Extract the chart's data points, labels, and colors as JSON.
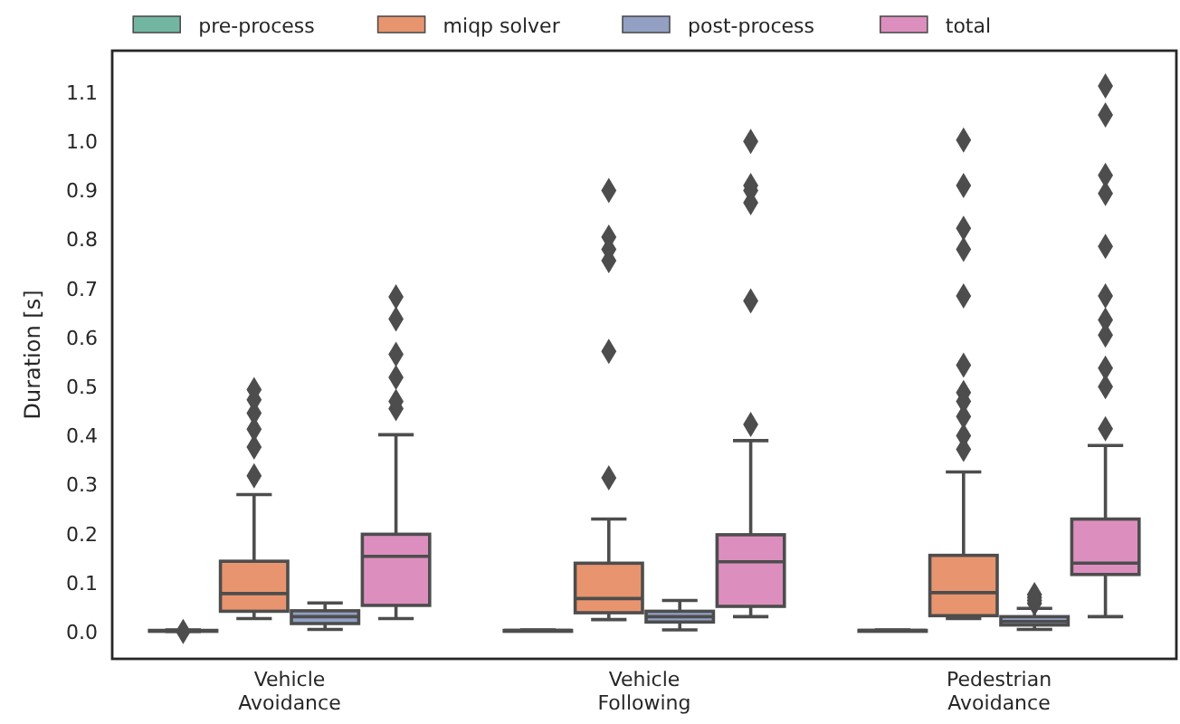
{
  "chart_data": {
    "type": "box",
    "ylabel": "Duration [s]",
    "categories": [
      "Vehicle Avoidance",
      "Vehicle Following",
      "Pedestrian Avoidance"
    ],
    "ylim": [
      -0.055,
      1.185
    ],
    "yticks": [
      {
        "value": 0,
        "label": "0.0"
      },
      {
        "value": 0.1,
        "label": "0.1"
      },
      {
        "value": 0.2,
        "label": "0.2"
      },
      {
        "value": 0.3,
        "label": "0.3"
      },
      {
        "value": 0.4,
        "label": "0.4"
      },
      {
        "value": 0.5,
        "label": "0.5"
      },
      {
        "value": 0.6,
        "label": "0.6"
      },
      {
        "value": 0.7,
        "label": "0.7"
      },
      {
        "value": 0.8,
        "label": "0.8"
      },
      {
        "value": 0.9,
        "label": "0.9"
      },
      {
        "value": 1.0,
        "label": "1.0"
      },
      {
        "value": 1.1,
        "label": "1.1"
      }
    ],
    "grid": false,
    "legend": "top",
    "marker": "diamond",
    "series": [
      {
        "name": "pre-process",
        "color": "#72b6a1",
        "boxes": [
          {
            "low": 0.001,
            "q1": 0.002,
            "median": 0.002,
            "q3": 0.003,
            "high": 0.004,
            "outliers": [
              0.001
            ]
          },
          {
            "low": 0.002,
            "q1": 0.002,
            "median": 0.003,
            "q3": 0.003,
            "high": 0.004
          },
          {
            "low": 0.002,
            "q1": 0.002,
            "median": 0.003,
            "q3": 0.003,
            "high": 0.004
          }
        ]
      },
      {
        "name": "miqp solver",
        "color": "#e8956f",
        "boxes": [
          {
            "low": 0.027,
            "q1": 0.042,
            "median": 0.078,
            "q3": 0.144,
            "high": 0.28,
            "outliers": [
              0.318,
              0.377,
              0.413,
              0.446,
              0.473,
              0.494
            ]
          },
          {
            "low": 0.025,
            "q1": 0.039,
            "median": 0.068,
            "q3": 0.14,
            "high": 0.23,
            "outliers": [
              0.314,
              0.572,
              0.757,
              0.78,
              0.805,
              0.9
            ]
          },
          {
            "low": 0.027,
            "q1": 0.033,
            "median": 0.08,
            "q3": 0.156,
            "high": 0.326,
            "outliers": [
              0.372,
              0.4,
              0.439,
              0.47,
              0.488,
              0.544,
              0.685,
              0.78,
              0.823,
              0.91,
              1.003
            ]
          }
        ]
      },
      {
        "name": "post-process",
        "color": "#93a0c4",
        "boxes": [
          {
            "low": 0.005,
            "q1": 0.017,
            "median": 0.031,
            "q3": 0.043,
            "high": 0.059
          },
          {
            "low": 0.004,
            "q1": 0.02,
            "median": 0.031,
            "q3": 0.042,
            "high": 0.064
          },
          {
            "low": 0.005,
            "q1": 0.014,
            "median": 0.021,
            "q3": 0.031,
            "high": 0.048,
            "outliers": [
              0.058,
              0.064,
              0.07,
              0.076
            ]
          }
        ]
      },
      {
        "name": "total",
        "color": "#dc8fbe",
        "boxes": [
          {
            "low": 0.027,
            "q1": 0.054,
            "median": 0.154,
            "q3": 0.199,
            "high": 0.402,
            "outliers": [
              0.455,
              0.47,
              0.519,
              0.566,
              0.638,
              0.683
            ]
          },
          {
            "low": 0.031,
            "q1": 0.052,
            "median": 0.143,
            "q3": 0.198,
            "high": 0.39,
            "outliers": [
              0.423,
              0.675,
              0.875,
              0.9,
              0.91,
              1.0
            ]
          },
          {
            "low": 0.031,
            "q1": 0.117,
            "median": 0.14,
            "q3": 0.23,
            "high": 0.38,
            "outliers": [
              0.414,
              0.5,
              0.538,
              0.605,
              0.636,
              0.685,
              0.786,
              0.894,
              0.931,
              1.054,
              1.113
            ]
          }
        ]
      }
    ]
  }
}
